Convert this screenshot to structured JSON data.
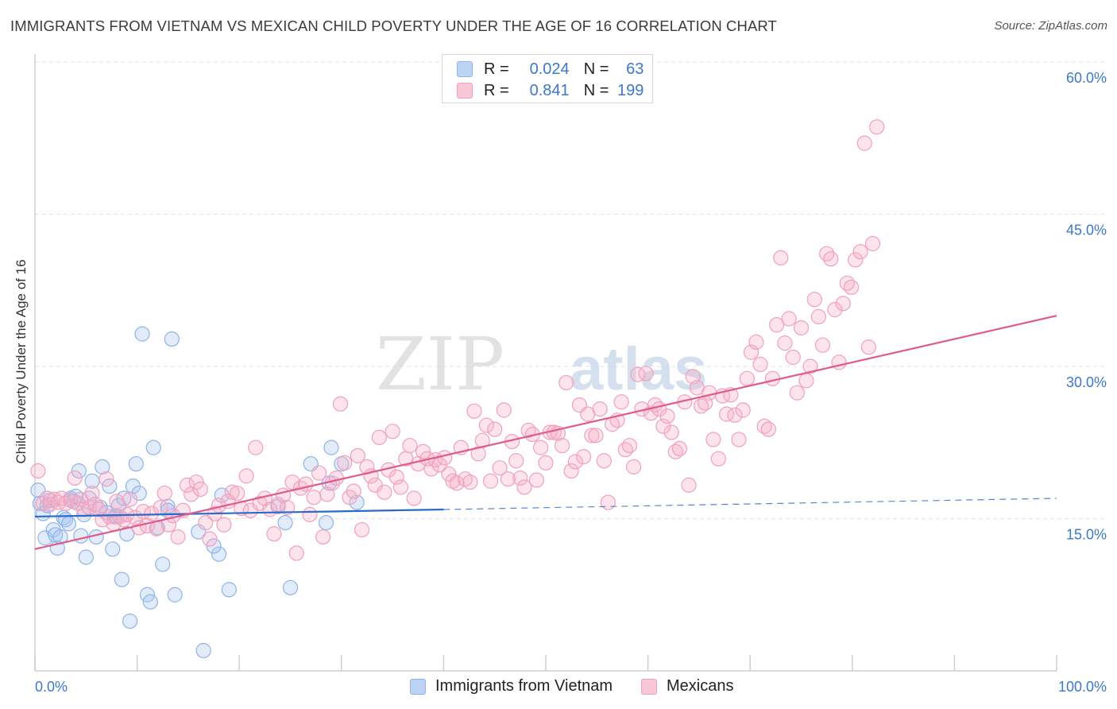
{
  "chart_data": {
    "type": "scatter",
    "title": "IMMIGRANTS FROM VIETNAM VS MEXICAN CHILD POVERTY UNDER THE AGE OF 16 CORRELATION CHART",
    "source": "Source: ZipAtlas.com",
    "watermark_a": "ZIP",
    "watermark_b": "atlas",
    "xlabel": "",
    "ylabel": "Child Poverty Under the Age of 16",
    "xlim": [
      0,
      100
    ],
    "ylim": [
      0,
      60
    ],
    "x_tick_labels": {
      "min": "0.0%",
      "max": "100.0%"
    },
    "y_ticks": [
      {
        "value": 15,
        "label": "15.0%"
      },
      {
        "value": 30,
        "label": "30.0%"
      },
      {
        "value": 45,
        "label": "45.0%"
      },
      {
        "value": 60,
        "label": "60.0%"
      }
    ],
    "legend": {
      "r_label": "R =",
      "n_label": "N =",
      "entries": [
        {
          "name": "Immigrants from Vietnam",
          "r": "0.024",
          "n": "63"
        },
        {
          "name": "Mexicans",
          "r": "0.841",
          "n": "199"
        }
      ]
    },
    "series": [
      {
        "name": "Immigrants from Vietnam",
        "color": "#8db4e8",
        "fill": "rgba(168,199,240,0.35)",
        "line_color": "#2a6ac8",
        "trend": {
          "x0": 0,
          "y0": 15.2,
          "x1": 40,
          "y1": 15.9,
          "dash_to": 100,
          "dash_y1": 17.0
        },
        "points": [
          [
            0.3,
            17.8
          ],
          [
            0.5,
            16.5
          ],
          [
            0.8,
            15.5
          ],
          [
            1.0,
            13.1
          ],
          [
            1.2,
            16.3
          ],
          [
            1.5,
            16.8
          ],
          [
            1.8,
            13.9
          ],
          [
            2.0,
            13.4
          ],
          [
            2.2,
            12.1
          ],
          [
            2.5,
            13.2
          ],
          [
            2.8,
            15.1
          ],
          [
            3.0,
            14.9
          ],
          [
            3.3,
            14.5
          ],
          [
            3.5,
            17.0
          ],
          [
            3.8,
            16.7
          ],
          [
            4.0,
            17.2
          ],
          [
            4.3,
            19.7
          ],
          [
            4.5,
            13.3
          ],
          [
            4.8,
            15.4
          ],
          [
            5.0,
            11.2
          ],
          [
            5.3,
            17.0
          ],
          [
            5.6,
            18.7
          ],
          [
            6.0,
            13.2
          ],
          [
            6.4,
            16.1
          ],
          [
            6.6,
            20.1
          ],
          [
            7.0,
            15.6
          ],
          [
            7.3,
            18.2
          ],
          [
            7.6,
            12.0
          ],
          [
            7.8,
            15.2
          ],
          [
            8.0,
            15.2
          ],
          [
            8.2,
            16.3
          ],
          [
            8.5,
            9.0
          ],
          [
            8.7,
            17.0
          ],
          [
            9.0,
            13.5
          ],
          [
            9.3,
            4.9
          ],
          [
            9.6,
            18.2
          ],
          [
            9.9,
            20.4
          ],
          [
            10.2,
            17.5
          ],
          [
            10.5,
            33.2
          ],
          [
            11.0,
            7.5
          ],
          [
            11.3,
            6.8
          ],
          [
            11.6,
            22.0
          ],
          [
            12.0,
            14.1
          ],
          [
            12.5,
            10.5
          ],
          [
            13.0,
            16.2
          ],
          [
            13.4,
            32.7
          ],
          [
            13.7,
            7.5
          ],
          [
            13.0,
            15.8
          ],
          [
            16.5,
            2.0
          ],
          [
            16.0,
            13.7
          ],
          [
            18.0,
            11.5
          ],
          [
            18.3,
            17.3
          ],
          [
            19.0,
            8.0
          ],
          [
            17.5,
            12.3
          ],
          [
            23.8,
            16.2
          ],
          [
            24.5,
            14.6
          ],
          [
            25.0,
            8.2
          ],
          [
            27.0,
            20.4
          ],
          [
            28.5,
            14.6
          ],
          [
            28.8,
            18.5
          ],
          [
            29.0,
            22.0
          ],
          [
            30.0,
            20.4
          ],
          [
            31.5,
            16.6
          ]
        ]
      },
      {
        "name": "Mexicans",
        "color": "#f0a0bc",
        "fill": "rgba(245,175,200,0.35)",
        "line_color": "#e05a8c",
        "trend": {
          "x0": 0,
          "y0": 12.0,
          "x1": 100,
          "y1": 35.0
        },
        "points": [
          [
            0.3,
            19.7
          ],
          [
            0.8,
            16.5
          ],
          [
            1.2,
            17.0
          ],
          [
            1.5,
            16.4
          ],
          [
            1.9,
            16.9
          ],
          [
            2.3,
            16.6
          ],
          [
            2.6,
            17.0
          ],
          [
            3.0,
            16.5
          ],
          [
            3.5,
            16.8
          ],
          [
            3.9,
            19.0
          ],
          [
            4.2,
            16.5
          ],
          [
            4.5,
            16.9
          ],
          [
            4.8,
            15.9
          ],
          [
            5.3,
            16.1
          ],
          [
            5.6,
            17.5
          ],
          [
            5.9,
            16.4
          ],
          [
            6.3,
            15.9
          ],
          [
            6.6,
            14.9
          ],
          [
            7.0,
            18.9
          ],
          [
            7.3,
            15.2
          ],
          [
            7.7,
            14.5
          ],
          [
            8.0,
            16.7
          ],
          [
            8.3,
            15.2
          ],
          [
            8.7,
            14.9
          ],
          [
            9.0,
            15.4
          ],
          [
            9.3,
            16.9
          ],
          [
            9.8,
            15.1
          ],
          [
            10.2,
            14.1
          ],
          [
            10.6,
            15.7
          ],
          [
            11.0,
            14.3
          ],
          [
            11.4,
            15.5
          ],
          [
            11.9,
            14.0
          ],
          [
            12.3,
            16.1
          ],
          [
            12.7,
            17.5
          ],
          [
            13.1,
            14.4
          ],
          [
            13.5,
            15.3
          ],
          [
            14.0,
            13.2
          ],
          [
            14.5,
            15.8
          ],
          [
            14.9,
            18.3
          ],
          [
            15.3,
            17.4
          ],
          [
            15.8,
            18.6
          ],
          [
            16.2,
            17.9
          ],
          [
            16.7,
            14.6
          ],
          [
            17.1,
            13.0
          ],
          [
            17.6,
            15.5
          ],
          [
            18.0,
            16.3
          ],
          [
            18.5,
            14.4
          ],
          [
            18.9,
            16.7
          ],
          [
            19.3,
            17.6
          ],
          [
            19.8,
            17.5
          ],
          [
            20.2,
            16.0
          ],
          [
            20.7,
            19.2
          ],
          [
            21.1,
            15.8
          ],
          [
            21.6,
            22.0
          ],
          [
            22.0,
            16.5
          ],
          [
            22.5,
            17.0
          ],
          [
            23.0,
            15.9
          ],
          [
            23.4,
            13.5
          ],
          [
            23.8,
            16.4
          ],
          [
            24.3,
            17.3
          ],
          [
            24.7,
            16.1
          ],
          [
            25.2,
            18.6
          ],
          [
            25.6,
            11.6
          ],
          [
            26.0,
            18.0
          ],
          [
            26.5,
            18.4
          ],
          [
            26.9,
            15.4
          ],
          [
            27.3,
            17.1
          ],
          [
            27.8,
            19.5
          ],
          [
            28.2,
            13.2
          ],
          [
            28.6,
            17.4
          ],
          [
            29.1,
            18.5
          ],
          [
            29.5,
            19.0
          ],
          [
            29.9,
            26.3
          ],
          [
            30.3,
            20.5
          ],
          [
            30.8,
            17.1
          ],
          [
            31.2,
            17.7
          ],
          [
            31.6,
            21.2
          ],
          [
            32.0,
            13.9
          ],
          [
            32.5,
            20.1
          ],
          [
            32.9,
            19.2
          ],
          [
            33.3,
            18.3
          ],
          [
            33.7,
            23.0
          ],
          [
            34.2,
            17.6
          ],
          [
            34.6,
            19.8
          ],
          [
            35.0,
            23.6
          ],
          [
            35.4,
            19.1
          ],
          [
            35.8,
            18.1
          ],
          [
            36.3,
            20.9
          ],
          [
            36.7,
            22.2
          ],
          [
            37.1,
            17.0
          ],
          [
            37.5,
            20.4
          ],
          [
            38.0,
            21.6
          ],
          [
            38.4,
            20.9
          ],
          [
            38.8,
            19.9
          ],
          [
            39.2,
            20.8
          ],
          [
            39.6,
            20.3
          ],
          [
            40.1,
            21.0
          ],
          [
            40.5,
            19.4
          ],
          [
            40.9,
            18.7
          ],
          [
            41.3,
            18.5
          ],
          [
            41.7,
            22.0
          ],
          [
            42.1,
            18.9
          ],
          [
            42.6,
            18.6
          ],
          [
            43.0,
            25.6
          ],
          [
            43.4,
            21.4
          ],
          [
            43.8,
            22.7
          ],
          [
            44.2,
            24.2
          ],
          [
            44.6,
            18.7
          ],
          [
            45.0,
            23.8
          ],
          [
            45.5,
            20.0
          ],
          [
            45.9,
            25.7
          ],
          [
            46.3,
            18.9
          ],
          [
            46.7,
            22.6
          ],
          [
            47.1,
            20.7
          ],
          [
            47.5,
            19.0
          ],
          [
            47.9,
            18.1
          ],
          [
            48.3,
            23.7
          ],
          [
            48.7,
            23.3
          ],
          [
            49.1,
            18.8
          ],
          [
            49.5,
            22.0
          ],
          [
            50.0,
            20.5
          ],
          [
            50.4,
            23.5
          ],
          [
            50.8,
            23.5
          ],
          [
            51.2,
            23.4
          ],
          [
            51.6,
            22.2
          ],
          [
            52.0,
            28.4
          ],
          [
            52.5,
            19.7
          ],
          [
            52.9,
            20.6
          ],
          [
            53.3,
            26.2
          ],
          [
            53.7,
            21.1
          ],
          [
            54.1,
            25.3
          ],
          [
            54.5,
            23.2
          ],
          [
            54.9,
            23.2
          ],
          [
            55.3,
            25.8
          ],
          [
            55.7,
            20.7
          ],
          [
            56.1,
            16.6
          ],
          [
            56.5,
            24.3
          ],
          [
            57.0,
            24.7
          ],
          [
            57.4,
            26.5
          ],
          [
            57.8,
            21.8
          ],
          [
            58.2,
            22.2
          ],
          [
            58.6,
            20.1
          ],
          [
            59.0,
            29.2
          ],
          [
            59.4,
            25.8
          ],
          [
            59.8,
            29.3
          ],
          [
            60.3,
            25.4
          ],
          [
            60.7,
            26.2
          ],
          [
            61.1,
            25.8
          ],
          [
            61.5,
            24.1
          ],
          [
            61.9,
            25.1
          ],
          [
            62.3,
            23.5
          ],
          [
            62.7,
            21.6
          ],
          [
            63.1,
            21.9
          ],
          [
            63.6,
            26.5
          ],
          [
            64.0,
            18.3
          ],
          [
            64.4,
            29.0
          ],
          [
            64.8,
            27.9
          ],
          [
            65.2,
            26.1
          ],
          [
            65.6,
            26.4
          ],
          [
            66.0,
            27.4
          ],
          [
            66.4,
            22.8
          ],
          [
            66.9,
            20.9
          ],
          [
            67.3,
            27.1
          ],
          [
            67.7,
            25.3
          ],
          [
            68.1,
            27.2
          ],
          [
            68.5,
            25.2
          ],
          [
            68.9,
            22.8
          ],
          [
            69.3,
            25.7
          ],
          [
            69.7,
            28.8
          ],
          [
            70.1,
            31.4
          ],
          [
            70.6,
            32.4
          ],
          [
            71.0,
            30.2
          ],
          [
            71.4,
            24.1
          ],
          [
            71.8,
            23.8
          ],
          [
            72.2,
            28.8
          ],
          [
            72.6,
            34.1
          ],
          [
            73.0,
            40.7
          ],
          [
            73.4,
            32.3
          ],
          [
            73.8,
            34.7
          ],
          [
            74.2,
            30.9
          ],
          [
            74.6,
            27.4
          ],
          [
            75.0,
            33.8
          ],
          [
            75.5,
            28.6
          ],
          [
            75.9,
            30.0
          ],
          [
            76.3,
            36.6
          ],
          [
            76.7,
            34.9
          ],
          [
            77.1,
            32.1
          ],
          [
            77.5,
            41.1
          ],
          [
            77.9,
            40.6
          ],
          [
            78.3,
            35.6
          ],
          [
            78.7,
            30.4
          ],
          [
            79.1,
            36.2
          ],
          [
            79.5,
            38.2
          ],
          [
            79.9,
            37.8
          ],
          [
            80.3,
            40.5
          ],
          [
            80.8,
            41.3
          ],
          [
            81.2,
            52.0
          ],
          [
            81.6,
            31.9
          ],
          [
            82.0,
            42.1
          ],
          [
            82.4,
            53.6
          ]
        ]
      }
    ]
  }
}
